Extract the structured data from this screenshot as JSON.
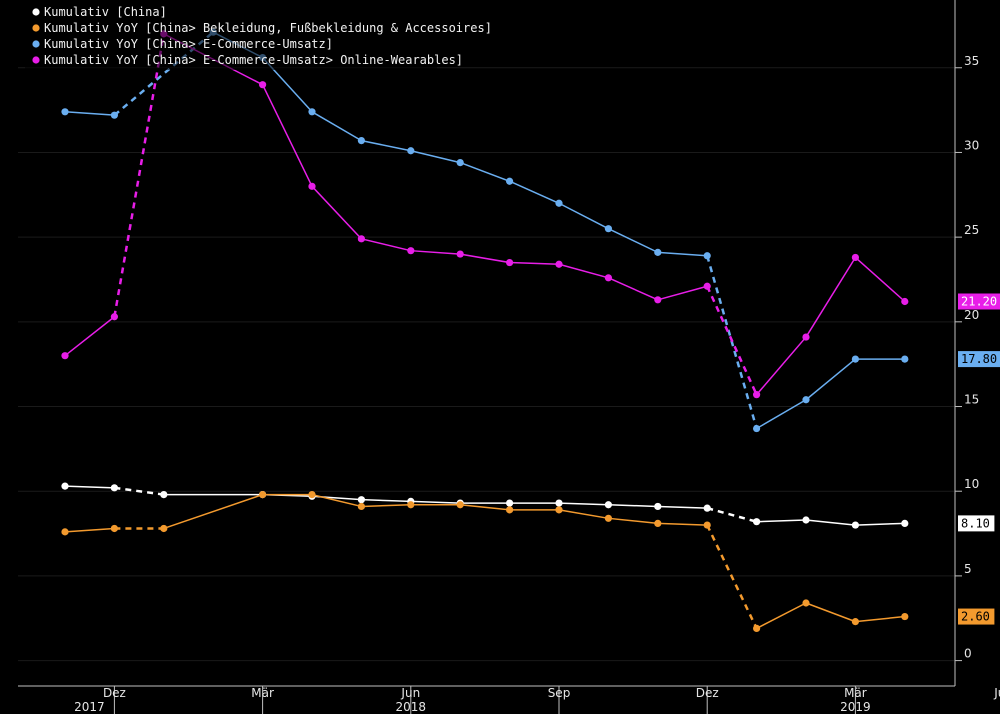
{
  "chart_data": {
    "type": "line",
    "x": [
      "2017-11",
      "2017-12",
      "2018-01",
      "2018-02",
      "2018-03",
      "2018-04",
      "2018-05",
      "2018-06",
      "2018-07",
      "2018-08",
      "2018-09",
      "2018-10",
      "2018-11",
      "2018-12",
      "2019-01",
      "2019-02",
      "2019-03",
      "2019-04",
      "2019-05"
    ],
    "x_tick_labels": [
      {
        "x": "2017-12",
        "label": "Dez"
      },
      {
        "x": "2018-03",
        "label": "Mär"
      },
      {
        "x": "2018-06",
        "label": "Jun"
      },
      {
        "x": "2018-09",
        "label": "Sep"
      },
      {
        "x": "2018-12",
        "label": "Dez"
      },
      {
        "x": "2019-03",
        "label": "Mär"
      },
      {
        "x": "2019-06",
        "label": "Jun"
      }
    ],
    "year_labels": [
      {
        "x": "2017-12",
        "label": "2017"
      },
      {
        "x": "2018-06",
        "label": "2018"
      },
      {
        "x": "2019-03",
        "label": "2019"
      }
    ],
    "ylim": [
      -1.5,
      39
    ],
    "y_ticks": [
      0,
      5,
      10,
      15,
      20,
      25,
      30,
      35
    ],
    "legend_position": "top-left",
    "series": [
      {
        "name": "Kumulativ [China]",
        "color": "#ffffff",
        "values": [
          10.3,
          10.2,
          9.8,
          null,
          9.8,
          9.7,
          9.5,
          9.4,
          9.3,
          9.3,
          9.3,
          9.2,
          9.1,
          9.0,
          8.2,
          8.3,
          8.0,
          8.1,
          null
        ],
        "dashed_gaps": [
          [
            1,
            2
          ],
          [
            13,
            14
          ]
        ],
        "last_label": "8.10"
      },
      {
        "name": "Kumulativ YoY [China> Bekleidung, Fußbekleidung & Accessoires]",
        "color": "#f39a2e",
        "values": [
          7.6,
          7.8,
          7.8,
          null,
          9.8,
          9.8,
          9.1,
          9.2,
          9.2,
          8.9,
          8.9,
          8.4,
          8.1,
          8.0,
          1.9,
          3.4,
          2.3,
          2.6,
          null
        ],
        "dashed_gaps": [
          [
            1,
            2
          ],
          [
            13,
            14
          ]
        ],
        "last_label": "2.60"
      },
      {
        "name": "Kumulativ YoY [China> E-Commerce-Umsatz]",
        "color": "#6aaef0",
        "values": [
          32.4,
          32.2,
          null,
          37.1,
          35.6,
          32.4,
          30.7,
          30.1,
          29.4,
          28.3,
          27.0,
          25.5,
          24.1,
          23.9,
          13.7,
          15.4,
          17.8,
          17.8,
          null
        ],
        "dashed_gaps": [
          [
            1,
            3
          ],
          [
            13,
            14
          ]
        ],
        "last_label": "17.80"
      },
      {
        "name": "Kumulativ YoY [China> E-Commerce-Umsatz> Online-Wearables]",
        "color": "#e81ee8",
        "values": [
          18.0,
          20.3,
          37.0,
          null,
          34.0,
          28.0,
          24.9,
          24.2,
          24.0,
          23.5,
          23.4,
          22.6,
          21.3,
          22.1,
          15.7,
          19.1,
          23.8,
          21.2,
          null
        ],
        "dashed_gaps": [
          [
            1,
            2
          ],
          [
            13,
            14
          ]
        ],
        "last_label": "21.20"
      }
    ]
  }
}
